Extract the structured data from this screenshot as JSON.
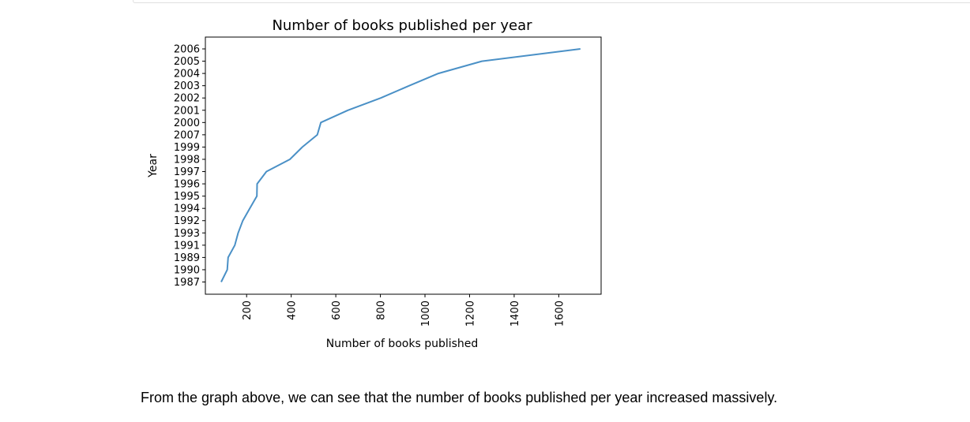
{
  "chart_data": {
    "type": "line",
    "title": "Number of books published per year",
    "xlabel": "Number of books published",
    "ylabel": "Year",
    "x_ticks": [
      200,
      400,
      600,
      800,
      1000,
      1200,
      1400,
      1600
    ],
    "xlim": [
      15,
      1790
    ],
    "y_categories": [
      "1987",
      "1990",
      "1989",
      "1991",
      "1993",
      "1992",
      "1994",
      "1995",
      "1996",
      "1997",
      "1998",
      "1999",
      "2007",
      "2000",
      "2001",
      "2002",
      "2003",
      "2004",
      "2005",
      "2006"
    ],
    "series": [
      {
        "color": "#4a90c6",
        "points": [
          {
            "year": "1987",
            "count": 86
          },
          {
            "year": "1990",
            "count": 113
          },
          {
            "year": "1989",
            "count": 117
          },
          {
            "year": "1991",
            "count": 147
          },
          {
            "year": "1993",
            "count": 162
          },
          {
            "year": "1992",
            "count": 183
          },
          {
            "year": "1994",
            "count": 214
          },
          {
            "year": "1995",
            "count": 246
          },
          {
            "year": "1996",
            "count": 247
          },
          {
            "year": "1997",
            "count": 289
          },
          {
            "year": "1998",
            "count": 394
          },
          {
            "year": "1999",
            "count": 450
          },
          {
            "year": "2007",
            "count": 517
          },
          {
            "year": "2000",
            "count": 533
          },
          {
            "year": "2001",
            "count": 654
          },
          {
            "year": "2002",
            "count": 802
          },
          {
            "year": "2003",
            "count": 929
          },
          {
            "year": "2004",
            "count": 1060
          },
          {
            "year": "2005",
            "count": 1255
          },
          {
            "year": "2006",
            "count": 1697
          }
        ]
      }
    ],
    "grid": false,
    "legend": "none"
  },
  "notebook": {
    "markdown_text": "From the graph above, we can see that the number of books published per year increased massively."
  }
}
